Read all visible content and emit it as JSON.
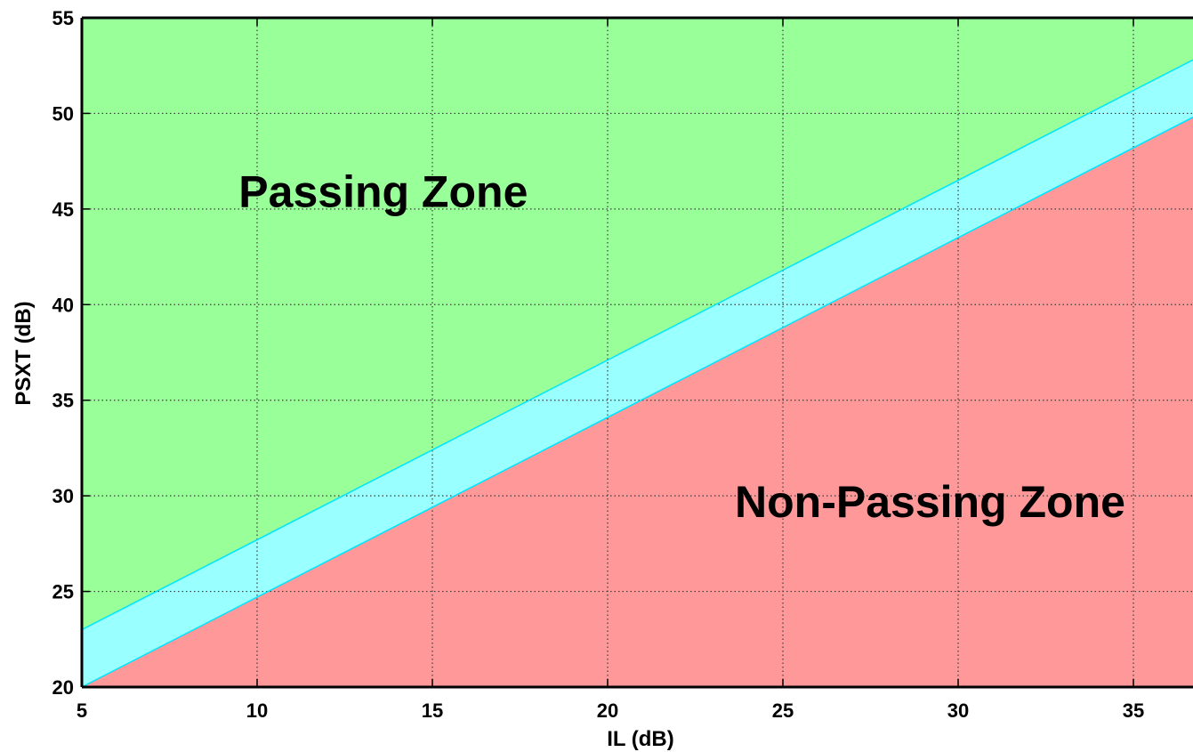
{
  "chart_data": {
    "type": "area",
    "xlabel": "IL (dB)",
    "ylabel": "PSXT (dB)",
    "xlim": [
      5,
      36.7
    ],
    "ylim": [
      20,
      55
    ],
    "xticks": [
      5,
      10,
      15,
      20,
      25,
      30,
      35
    ],
    "yticks": [
      20,
      25,
      30,
      35,
      40,
      45,
      50,
      55
    ],
    "grid": true,
    "regions": [
      {
        "name": "Passing Zone",
        "color": "#99ff99",
        "bound": "above upper line"
      },
      {
        "name": "",
        "color": "#99ffff",
        "bound": "between upper and lower line"
      },
      {
        "name": "Non-Passing Zone",
        "color": "#ff9999",
        "bound": "below lower line"
      }
    ],
    "series": [
      {
        "x": [
          5,
          36.7
        ],
        "y": [
          23.0,
          52.8
        ],
        "color": "#00e5ff"
      },
      {
        "x": [
          5,
          36.7
        ],
        "y": [
          20.0,
          49.8
        ],
        "color": "#00e5ff"
      }
    ],
    "annotations": [
      {
        "text": "Passing Zone",
        "x": 13.6,
        "y": 45.1
      },
      {
        "text": "Non-Passing Zone",
        "x": 29.2,
        "y": 28.9
      }
    ]
  }
}
